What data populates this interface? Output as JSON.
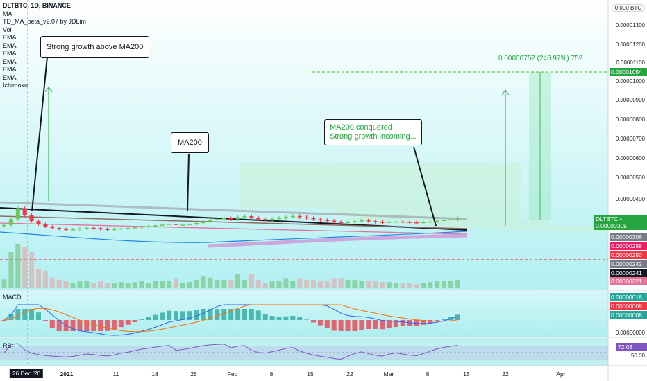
{
  "header": {
    "symbol": "DLTBTC, 1D, BINANCE",
    "indicators": [
      "MA",
      "TD_MA_beta_v2.07 by JDLim",
      "Vol",
      "EMA",
      "EMA",
      "EMA",
      "EMA",
      "EMA",
      "EMA",
      "Ichimoku"
    ]
  },
  "annotations": {
    "strong_growth": "Strong growth above MA200",
    "ma200": "MA200",
    "conquered_line1": "MA200 conquered",
    "conquered_line2": "Strong growth incoming...",
    "target_measure": "0.00000752 (246.97%) 752"
  },
  "price_axis": {
    "top_label": "0.000 BTC",
    "ticks": [
      "0.00001300",
      "0.00001200",
      "0.00001100",
      "0.00001000",
      "0.00000900",
      "0.00000800",
      "0.00000700",
      "0.00000600",
      "0.00000500",
      "0.00000400"
    ],
    "tags": [
      {
        "text": "0.00001054",
        "color": "#26a641"
      },
      {
        "text": "DLTBTC • 0.00000305",
        "color": "#26a641"
      },
      {
        "text": "0.00000306",
        "color": "#787b86"
      },
      {
        "text": "0.00000258",
        "color": "#e91e63"
      },
      {
        "text": "0.00000250",
        "color": "#f23645"
      },
      {
        "text": "0.00000242",
        "color": "#787b86"
      },
      {
        "text": "0.00000241",
        "color": "#131722"
      },
      {
        "text": "0.00000221",
        "color": "#e57399"
      }
    ]
  },
  "macd": {
    "title": "MACD",
    "tags": [
      {
        "text": "0.00000016",
        "color": "#26a69a"
      },
      {
        "text": "0.00000009",
        "color": "#f23645"
      },
      {
        "text": "0.00000008",
        "color": "#26a69a"
      }
    ],
    "zero_label": "-0.00000000"
  },
  "rsi": {
    "title": "RSI",
    "value": "72.03",
    "level": "50.00",
    "value_color": "#7e57c2"
  },
  "time_axis": {
    "labels": [
      {
        "text": "26 Dec '20",
        "highlight": true
      },
      {
        "text": "2021",
        "bold": true
      },
      {
        "text": "11"
      },
      {
        "text": "18"
      },
      {
        "text": "25"
      },
      {
        "text": "Feb"
      },
      {
        "text": "8"
      },
      {
        "text": "15"
      },
      {
        "text": "22"
      },
      {
        "text": "Mar"
      },
      {
        "text": "8"
      },
      {
        "text": "15"
      },
      {
        "text": "22"
      },
      {
        "text": "Apr"
      }
    ]
  },
  "chart_data": {
    "type": "candlestick",
    "symbol": "DLTBTC",
    "timeframe": "1D",
    "exchange": "BINANCE",
    "last_price": 3.05e-06,
    "target_price": 1.054e-05,
    "target_change_pct": 246.97,
    "ma200_level_start": 3.9e-06,
    "ma200_level_end": 3.1e-06,
    "support_level": 2.5e-06,
    "close_prices": [
      2.7e-06,
      3e-06,
      3.55e-06,
      3.2e-06,
      2.9e-06,
      2.75e-06,
      2.62e-06,
      2.55e-06,
      2.5e-06,
      2.46e-06,
      2.48e-06,
      2.52e-06,
      2.56e-06,
      2.54e-06,
      2.5e-06,
      2.48e-06,
      2.5e-06,
      2.53e-06,
      2.55e-06,
      2.58e-06,
      2.62e-06,
      2.64e-06,
      2.68e-06,
      2.72e-06,
      2.76e-06,
      2.7e-06,
      2.72e-06,
      2.75e-06,
      2.8e-06,
      2.88e-06,
      2.95e-06,
      3e-06,
      3.05e-06,
      3e-06,
      3.1e-06,
      3.15e-06,
      3.05e-06,
      3e-06,
      2.98e-06,
      3.02e-06,
      3.06e-06,
      3.12e-06,
      3.16e-06,
      3.1e-06,
      3.05e-06,
      3e-06,
      2.96e-06,
      2.92e-06,
      2.86e-06,
      2.8e-06,
      2.85e-06,
      2.9e-06,
      2.94e-06,
      2.9e-06,
      2.86e-06,
      2.83e-06,
      2.86e-06,
      2.88e-06,
      2.86e-06,
      2.84e-06,
      2.83e-06,
      2.85e-06,
      2.88e-06,
      2.92e-06,
      2.96e-06,
      3e-06,
      3.05e-06
    ],
    "rsi_last": 72.03
  }
}
